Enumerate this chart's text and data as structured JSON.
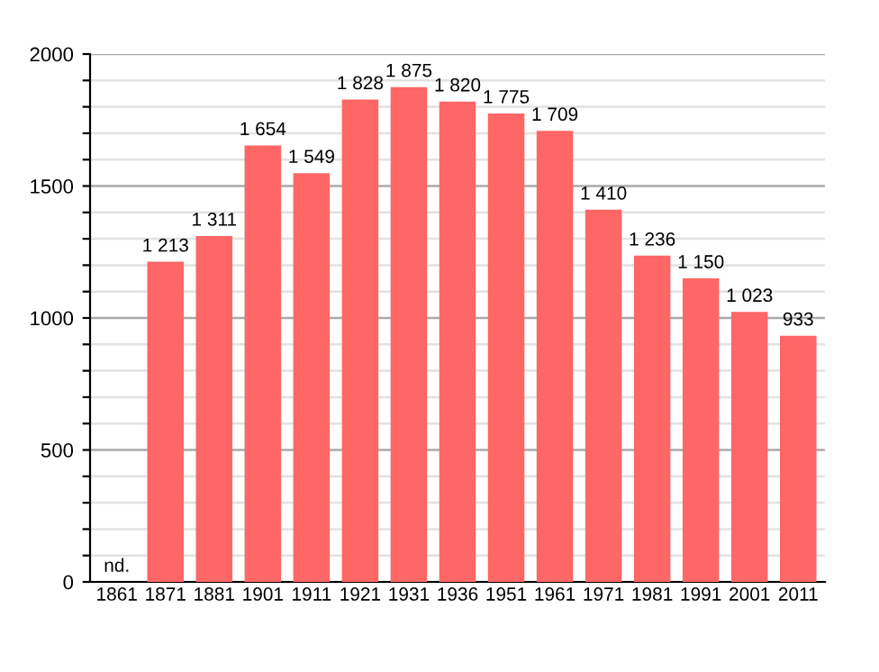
{
  "chart_data": {
    "type": "bar",
    "categories": [
      "1861",
      "1871",
      "1881",
      "1901",
      "1911",
      "1921",
      "1931",
      "1936",
      "1951",
      "1961",
      "1971",
      "1981",
      "1991",
      "2001",
      "2011"
    ],
    "values": [
      null,
      1213,
      1311,
      1654,
      1549,
      1828,
      1875,
      1820,
      1775,
      1709,
      1410,
      1236,
      1150,
      1023,
      933
    ],
    "value_labels": [
      "nd.",
      "1 213",
      "1 311",
      "1 654",
      "1 549",
      "1 828",
      "1 875",
      "1 820",
      "1 775",
      "1 709",
      "1 410",
      "1 236",
      "1 150",
      "1 023",
      "933"
    ],
    "color": "#ff6666",
    "ylim": [
      0,
      2000
    ],
    "yticks": [
      0,
      {
        "value": 100,
        "label": null
      },
      {
        "value": 200,
        "label": null
      },
      {
        "value": 300,
        "label": null
      },
      {
        "value": 400,
        "label": null
      },
      500,
      {
        "value": 600,
        "label": null
      },
      {
        "value": 700,
        "label": null
      },
      {
        "value": 800,
        "label": null
      },
      {
        "value": 900,
        "label": null
      },
      1000,
      {
        "value": 1100,
        "label": null
      },
      {
        "value": 1200,
        "label": null
      },
      {
        "value": 1300,
        "label": null
      },
      {
        "value": 1400,
        "label": null
      },
      1500,
      {
        "value": 1600,
        "label": null
      },
      {
        "value": 1700,
        "label": null
      },
      {
        "value": 1800,
        "label": null
      },
      {
        "value": 1900,
        "label": null
      },
      2000
    ],
    "grid": "y"
  }
}
